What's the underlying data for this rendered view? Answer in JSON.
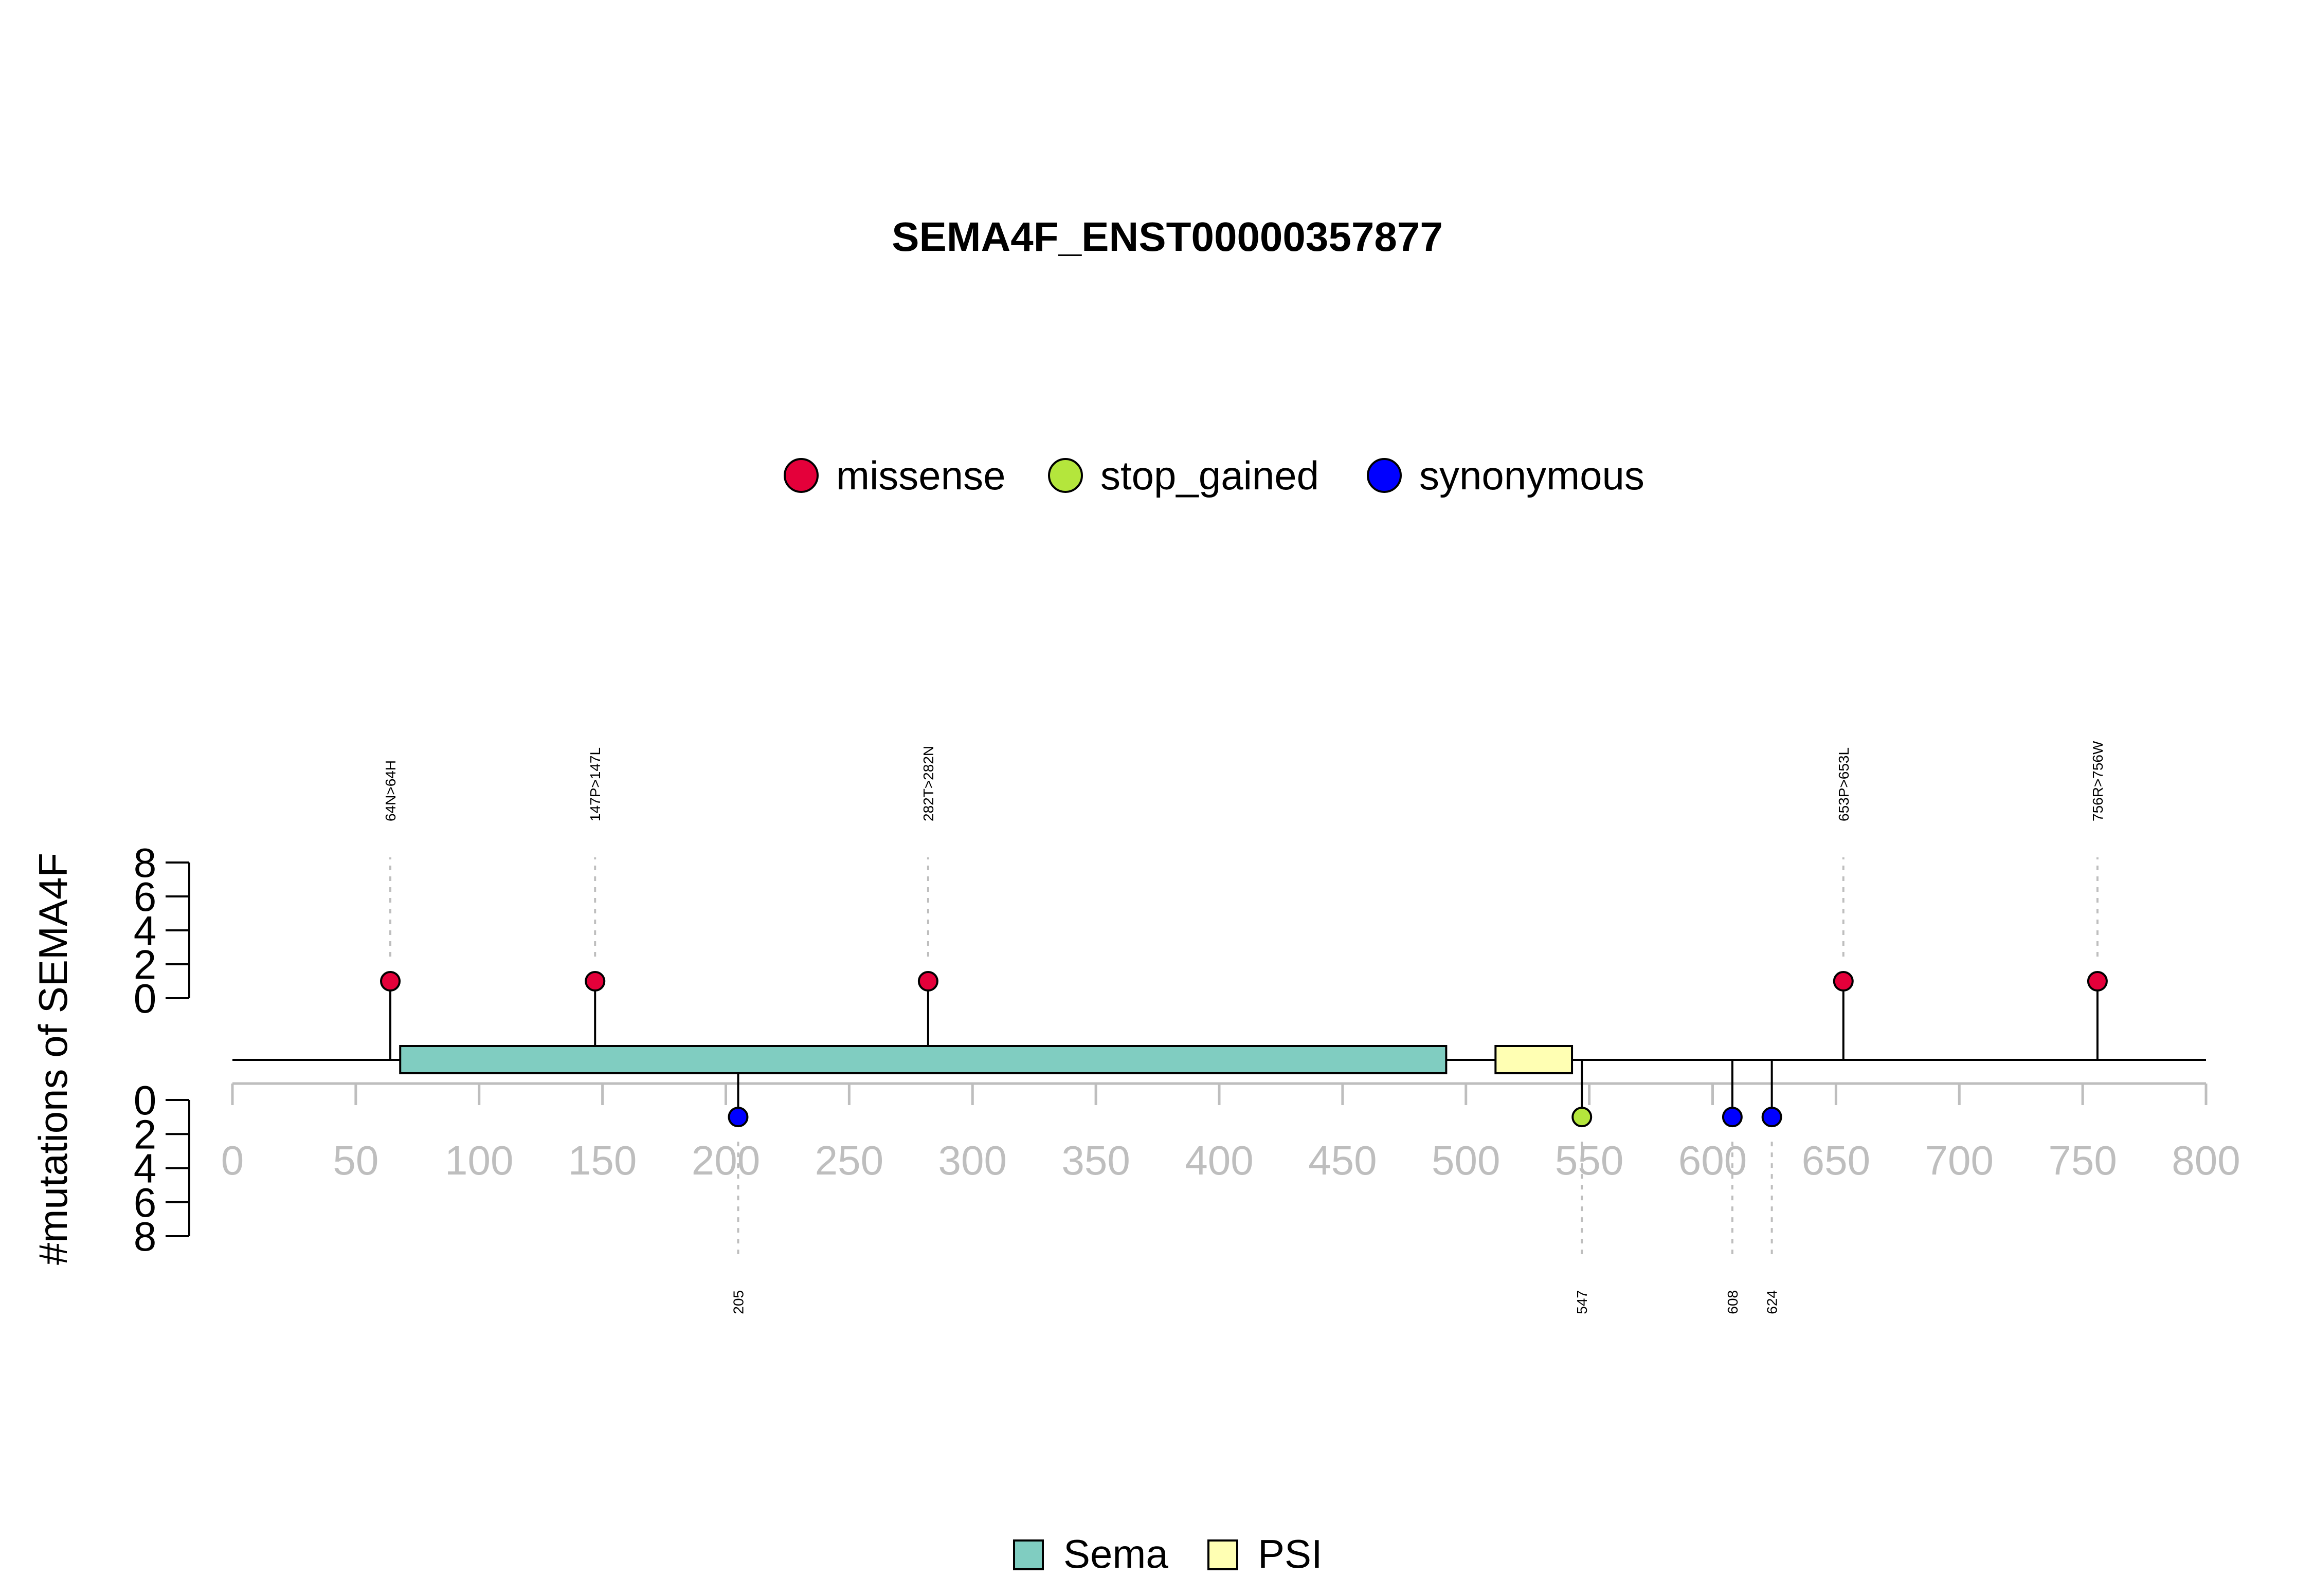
{
  "chart_data": {
    "type": "lollipop",
    "title": "SEMA4F_ENST00000357877",
    "ylabel": "#mutations of SEMA4F",
    "xlim": [
      0,
      800
    ],
    "x_ticks": [
      0,
      50,
      100,
      150,
      200,
      250,
      300,
      350,
      400,
      450,
      500,
      550,
      600,
      650,
      700,
      750,
      800
    ],
    "y_ticks_upper": [
      0,
      2,
      4,
      6,
      8
    ],
    "y_ticks_lower": [
      0,
      2,
      4,
      6,
      8
    ],
    "ylim": [
      0,
      8
    ],
    "legend_mutations": [
      {
        "name": "missense",
        "color": "#E4003A"
      },
      {
        "name": "stop_gained",
        "color": "#B4E63C"
      },
      {
        "name": "synonymous",
        "color": "#0000FF"
      }
    ],
    "legend_domains": [
      {
        "name": "Sema",
        "color": "#80CDC1"
      },
      {
        "name": "PSI",
        "color": "#FFFFB3"
      }
    ],
    "domains": [
      {
        "name": "Sema",
        "start": 68,
        "end": 492,
        "color": "#80CDC1"
      },
      {
        "name": "PSI",
        "start": 512,
        "end": 543,
        "color": "#FFFFB3"
      }
    ],
    "mutations_upper": [
      {
        "position": 64,
        "count": 1,
        "type": "missense",
        "label": "64N>64H"
      },
      {
        "position": 147,
        "count": 1,
        "type": "missense",
        "label": "147P>147L"
      },
      {
        "position": 282,
        "count": 1,
        "type": "missense",
        "label": "282T>282N"
      },
      {
        "position": 653,
        "count": 1,
        "type": "missense",
        "label": "653P>653L"
      },
      {
        "position": 756,
        "count": 1,
        "type": "missense",
        "label": "756R>756W"
      }
    ],
    "mutations_lower": [
      {
        "position": 205,
        "count": 1,
        "type": "synonymous",
        "label": "205"
      },
      {
        "position": 547,
        "count": 1,
        "type": "stop_gained",
        "label": "547"
      },
      {
        "position": 608,
        "count": 1,
        "type": "synonymous",
        "label": "608"
      },
      {
        "position": 624,
        "count": 1,
        "type": "synonymous",
        "label": "624"
      }
    ]
  }
}
